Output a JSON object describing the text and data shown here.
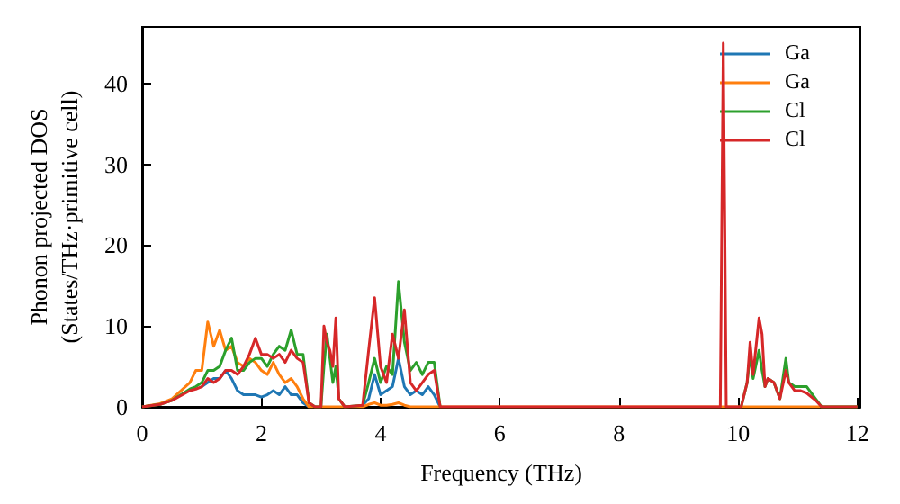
{
  "chart_data": {
    "type": "line",
    "xlabel": "Frequency (THz)",
    "ylabel": "Phonon projected DOS\n(States/THz·primitive cell)",
    "x": [
      0,
      0.3,
      0.5,
      0.8,
      0.9,
      1.0,
      1.1,
      1.2,
      1.3,
      1.4,
      1.5,
      1.6,
      1.7,
      1.8,
      1.9,
      2.0,
      2.1,
      2.2,
      2.3,
      2.4,
      2.5,
      2.6,
      2.7,
      2.8,
      2.9,
      3.0,
      3.05,
      3.1,
      3.15,
      3.2,
      3.25,
      3.3,
      3.4,
      3.7,
      3.8,
      3.9,
      4.0,
      4.1,
      4.2,
      4.3,
      4.4,
      4.5,
      4.6,
      4.7,
      4.8,
      4.9,
      5.0,
      9.7,
      9.75,
      9.8,
      10.05,
      10.15,
      10.2,
      10.25,
      10.35,
      10.4,
      10.45,
      10.5,
      10.6,
      10.7,
      10.8,
      10.85,
      10.95,
      11.05,
      11.15,
      11.3,
      11.4,
      12.0
    ],
    "series": [
      {
        "name": "Ga",
        "color": "#1f77b4",
        "values": [
          null,
          null,
          null,
          null,
          null,
          2.5,
          3,
          3.5,
          3.5,
          4.5,
          3.5,
          2,
          1.5,
          1.5,
          1.5,
          1.2,
          1.5,
          2,
          1.5,
          2.5,
          1.5,
          1.5,
          0.5,
          0,
          null,
          null,
          null,
          null,
          null,
          null,
          null,
          null,
          null,
          0.2,
          1,
          4,
          1.5,
          2,
          2.5,
          6,
          2.5,
          1.5,
          2,
          1.5,
          2.5,
          1.5,
          0,
          null,
          null,
          null,
          null,
          null,
          null,
          null,
          null,
          null,
          null,
          null,
          null,
          null,
          null,
          null,
          null,
          null,
          null,
          null,
          null,
          null
        ]
      },
      {
        "name": "Ga",
        "color": "#ff7f0e",
        "values": [
          0,
          0.4,
          1,
          3,
          4.5,
          4.5,
          10.5,
          7.5,
          9.5,
          7,
          7.5,
          5.5,
          5,
          6,
          5.5,
          4.5,
          4,
          5.5,
          4,
          3,
          3.5,
          2.5,
          1,
          0,
          0,
          0,
          0,
          0,
          0,
          0,
          0,
          0,
          0,
          0,
          0.3,
          0.5,
          0.2,
          0.2,
          0.3,
          0.5,
          0.2,
          0,
          0,
          0,
          0,
          0,
          0,
          0,
          0,
          0,
          0,
          0,
          0,
          0,
          0,
          0,
          0,
          0,
          0,
          0,
          0,
          0,
          0,
          0,
          0,
          0,
          0,
          0
        ]
      },
      {
        "name": "Cl",
        "color": "#2ca02c",
        "values": [
          0,
          0.3,
          0.8,
          2.2,
          2.5,
          3,
          4.5,
          4.5,
          5,
          7,
          8.5,
          4.5,
          4.5,
          5.5,
          6,
          6,
          5,
          6.5,
          7.5,
          7,
          9.5,
          6.5,
          6.5,
          0.5,
          0,
          0,
          5,
          9,
          6,
          3,
          5,
          1,
          0,
          0.2,
          3,
          6,
          3,
          5,
          4,
          15.5,
          8,
          4.5,
          5.5,
          4,
          5.5,
          5.5,
          0,
          null,
          null,
          null,
          0,
          3,
          6.5,
          3.5,
          7,
          4.5,
          2.5,
          3.5,
          3,
          1,
          6,
          3,
          2.5,
          2.5,
          2.5,
          1,
          0,
          0
        ]
      },
      {
        "name": "Cl",
        "color": "#d62728",
        "values": [
          0,
          0.3,
          0.8,
          2,
          2.2,
          2.5,
          3.5,
          3,
          3.5,
          4.5,
          4.5,
          4,
          5,
          6.5,
          8.5,
          6.5,
          6.5,
          6,
          6.5,
          5.5,
          7,
          6,
          5.5,
          0.5,
          0,
          0,
          10,
          8,
          7,
          5,
          11,
          1,
          0,
          0.2,
          7,
          13.5,
          5,
          3,
          9,
          6,
          12,
          3,
          2,
          3,
          4,
          4.5,
          0,
          0,
          45,
          0,
          0,
          3,
          8,
          4,
          11,
          9,
          2.5,
          3.5,
          3,
          1,
          4.5,
          3,
          2,
          2,
          1.7,
          0.8,
          0,
          0
        ]
      }
    ],
    "xlim": [
      0,
      12.05
    ],
    "xticks": [
      0,
      2,
      4,
      6,
      8,
      10,
      12
    ],
    "ylim": [
      0,
      47
    ],
    "yticks": [
      0,
      10,
      20,
      30,
      40
    ],
    "grid": false,
    "legend": "top right",
    "marker": "none",
    "line_style": "solid"
  }
}
